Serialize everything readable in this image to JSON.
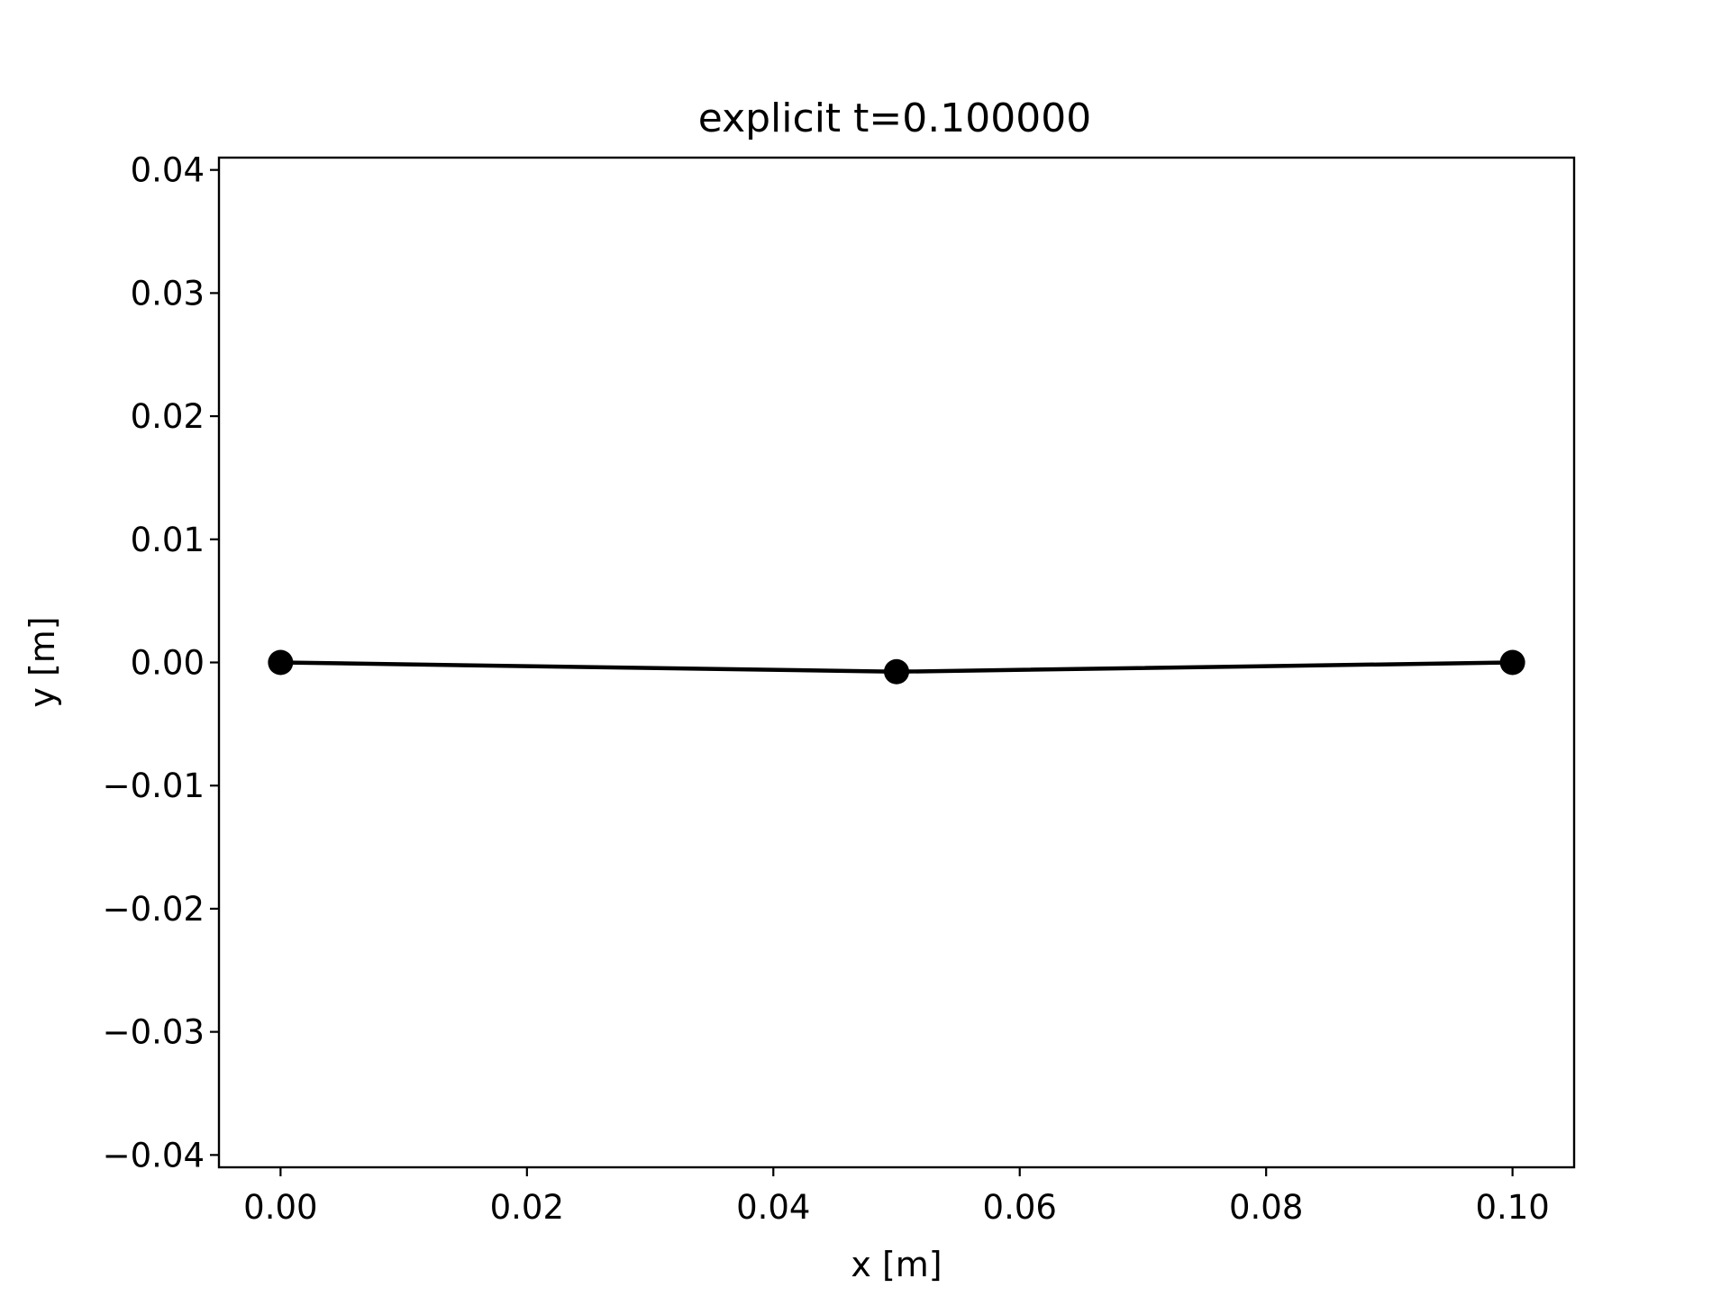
{
  "chart_data": {
    "type": "line",
    "title": "explicit t=0.100000",
    "xlabel": "x [m]",
    "ylabel": "y [m]",
    "xlim": [
      -0.005,
      0.105
    ],
    "ylim": [
      -0.041,
      0.041
    ],
    "xticks": [
      0.0,
      0.02,
      0.04,
      0.06,
      0.08,
      0.1
    ],
    "xtick_labels": [
      "0.00",
      "0.02",
      "0.04",
      "0.06",
      "0.08",
      "0.10"
    ],
    "yticks": [
      0.04,
      0.03,
      0.02,
      0.01,
      0.0,
      -0.01,
      -0.02,
      -0.03,
      -0.04
    ],
    "ytick_labels": [
      "0.04",
      "0.03",
      "0.02",
      "0.01",
      "0.00",
      "−0.01",
      "−0.02",
      "−0.03",
      "−0.04"
    ],
    "grid": false,
    "series": [
      {
        "x": [
          0.0,
          0.05,
          0.1
        ],
        "y": [
          0.0,
          -0.00075,
          0.0
        ],
        "color": "#000000",
        "marker": "circle"
      }
    ]
  }
}
